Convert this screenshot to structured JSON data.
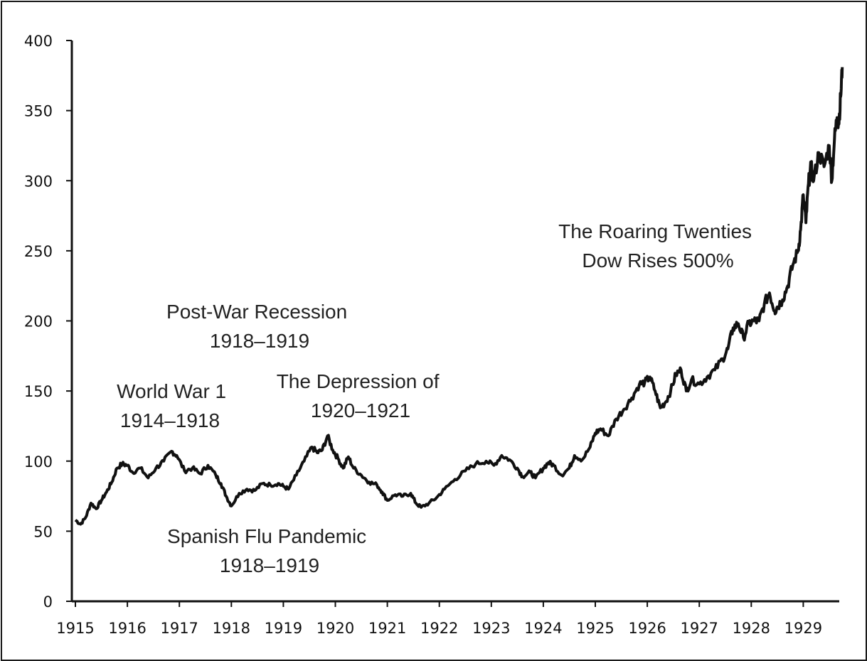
{
  "chart_data": {
    "type": "line",
    "title": "",
    "xlabel": "",
    "ylabel": "",
    "xlim": [
      1915,
      1929.75
    ],
    "ylim": [
      0,
      400
    ],
    "grid": false,
    "legend": "none",
    "x_ticks": [
      "1915",
      "1916",
      "1917",
      "1918",
      "1919",
      "1920",
      "1921",
      "1922",
      "1923",
      "1924",
      "1925",
      "1926",
      "1927",
      "1928",
      "1929"
    ],
    "y_ticks": [
      "0",
      "50",
      "100",
      "150",
      "200",
      "250",
      "300",
      "350",
      "400"
    ],
    "series": [
      {
        "color": "#111111",
        "points": [
          [
            1915.0,
            58
          ],
          [
            1915.1,
            55
          ],
          [
            1915.2,
            60
          ],
          [
            1915.3,
            70
          ],
          [
            1915.4,
            66
          ],
          [
            1915.5,
            72
          ],
          [
            1915.6,
            78
          ],
          [
            1915.7,
            85
          ],
          [
            1915.8,
            95
          ],
          [
            1915.9,
            98
          ],
          [
            1916.0,
            97
          ],
          [
            1916.1,
            92
          ],
          [
            1916.25,
            95
          ],
          [
            1916.4,
            88
          ],
          [
            1916.55,
            95
          ],
          [
            1916.7,
            100
          ],
          [
            1916.85,
            107
          ],
          [
            1916.95,
            104
          ],
          [
            1917.1,
            93
          ],
          [
            1917.25,
            95
          ],
          [
            1917.4,
            91
          ],
          [
            1917.55,
            97
          ],
          [
            1917.7,
            90
          ],
          [
            1917.8,
            84
          ],
          [
            1917.9,
            75
          ],
          [
            1918.0,
            68
          ],
          [
            1918.15,
            77
          ],
          [
            1918.3,
            80
          ],
          [
            1918.45,
            79
          ],
          [
            1918.6,
            84
          ],
          [
            1918.75,
            83
          ],
          [
            1918.9,
            84
          ],
          [
            1919.0,
            82
          ],
          [
            1919.1,
            80
          ],
          [
            1919.25,
            90
          ],
          [
            1919.4,
            100
          ],
          [
            1919.55,
            110
          ],
          [
            1919.65,
            106
          ],
          [
            1919.75,
            108
          ],
          [
            1919.85,
            118
          ],
          [
            1919.95,
            108
          ],
          [
            1920.05,
            102
          ],
          [
            1920.15,
            95
          ],
          [
            1920.25,
            103
          ],
          [
            1920.35,
            95
          ],
          [
            1920.5,
            90
          ],
          [
            1920.65,
            85
          ],
          [
            1920.8,
            83
          ],
          [
            1920.9,
            78
          ],
          [
            1921.0,
            72
          ],
          [
            1921.15,
            76
          ],
          [
            1921.3,
            75
          ],
          [
            1921.45,
            77
          ],
          [
            1921.55,
            70
          ],
          [
            1921.65,
            67
          ],
          [
            1921.8,
            70
          ],
          [
            1921.95,
            74
          ],
          [
            1922.1,
            80
          ],
          [
            1922.3,
            87
          ],
          [
            1922.5,
            93
          ],
          [
            1922.7,
            98
          ],
          [
            1922.9,
            100
          ],
          [
            1923.05,
            97
          ],
          [
            1923.2,
            104
          ],
          [
            1923.35,
            101
          ],
          [
            1923.5,
            95
          ],
          [
            1923.6,
            89
          ],
          [
            1923.75,
            92
          ],
          [
            1923.85,
            88
          ],
          [
            1924.0,
            95
          ],
          [
            1924.1,
            99
          ],
          [
            1924.2,
            97
          ],
          [
            1924.35,
            90
          ],
          [
            1924.5,
            95
          ],
          [
            1924.6,
            104
          ],
          [
            1924.75,
            101
          ],
          [
            1924.9,
            110
          ],
          [
            1925.0,
            120
          ],
          [
            1925.1,
            123
          ],
          [
            1925.25,
            118
          ],
          [
            1925.4,
            130
          ],
          [
            1925.55,
            137
          ],
          [
            1925.7,
            145
          ],
          [
            1925.85,
            155
          ],
          [
            1925.95,
            156
          ],
          [
            1926.05,
            160
          ],
          [
            1926.15,
            150
          ],
          [
            1926.25,
            138
          ],
          [
            1926.35,
            142
          ],
          [
            1926.45,
            150
          ],
          [
            1926.55,
            162
          ],
          [
            1926.65,
            165
          ],
          [
            1926.75,
            150
          ],
          [
            1926.85,
            158
          ],
          [
            1927.0,
            155
          ],
          [
            1927.15,
            160
          ],
          [
            1927.3,
            165
          ],
          [
            1927.45,
            173
          ],
          [
            1927.55,
            180
          ],
          [
            1927.65,
            195
          ],
          [
            1927.75,
            198
          ],
          [
            1927.85,
            188
          ],
          [
            1927.95,
            198
          ],
          [
            1928.05,
            200
          ],
          [
            1928.15,
            200
          ],
          [
            1928.25,
            212
          ],
          [
            1928.35,
            220
          ],
          [
            1928.45,
            207
          ],
          [
            1928.5,
            210
          ],
          [
            1928.6,
            215
          ],
          [
            1928.7,
            225
          ],
          [
            1928.8,
            240
          ],
          [
            1928.9,
            250
          ],
          [
            1928.95,
            265
          ],
          [
            1929.0,
            290
          ],
          [
            1929.05,
            270
          ],
          [
            1929.1,
            298
          ],
          [
            1929.15,
            310
          ],
          [
            1929.2,
            300
          ],
          [
            1929.3,
            320
          ],
          [
            1929.4,
            310
          ],
          [
            1929.5,
            325
          ],
          [
            1929.55,
            300
          ],
          [
            1929.6,
            330
          ],
          [
            1929.65,
            345
          ],
          [
            1929.68,
            340
          ],
          [
            1929.72,
            360
          ],
          [
            1929.75,
            381
          ]
        ]
      }
    ],
    "annotations": [
      {
        "key": "ww1",
        "lines": [
          "World War 1",
          "1914–1918"
        ]
      },
      {
        "key": "postwar",
        "lines": [
          "Post-War Recession",
          "1918–1919"
        ]
      },
      {
        "key": "depression",
        "lines": [
          "The Depression of",
          "1920–1921"
        ]
      },
      {
        "key": "flu",
        "lines": [
          "Spanish Flu Pandemic",
          "1918–1919"
        ]
      },
      {
        "key": "roaring",
        "lines": [
          "The Roaring Twenties",
          "Dow Rises 500%"
        ]
      }
    ]
  }
}
